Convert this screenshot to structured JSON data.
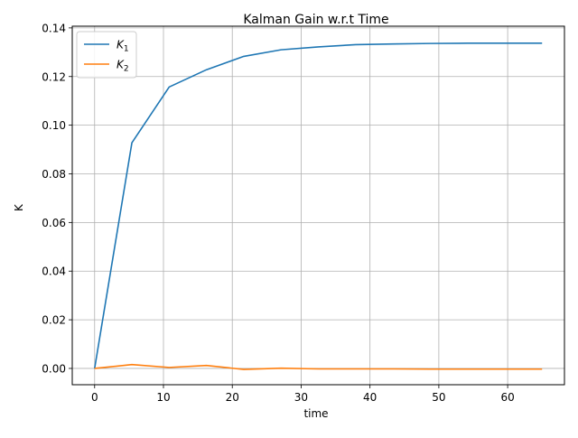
{
  "chart_data": {
    "type": "line",
    "title": "Kalman Gain w.r.t Time",
    "xlabel": "time",
    "ylabel": "K",
    "xlim": [
      -3.25,
      68.25
    ],
    "ylim": [
      -0.0067,
      0.1407
    ],
    "xticks": [
      0,
      10,
      20,
      30,
      40,
      50,
      60
    ],
    "yticks": [
      0.0,
      0.02,
      0.04,
      0.06,
      0.08,
      0.1,
      0.12,
      0.14
    ],
    "grid": true,
    "legend_position": "top-left",
    "x": [
      0,
      5.417,
      10.833,
      16.25,
      21.667,
      27.083,
      32.5,
      37.917,
      43.333,
      48.75,
      54.167,
      59.583,
      65
    ],
    "series": [
      {
        "name": "K1",
        "name_base": "K",
        "name_sub": "1",
        "color": "#1f77b4",
        "values": [
          0.0,
          0.0928,
          0.1157,
          0.1228,
          0.1283,
          0.131,
          0.1322,
          0.1331,
          0.1334,
          0.1336,
          0.1337,
          0.1337,
          0.1337
        ]
      },
      {
        "name": "K2",
        "name_base": "K",
        "name_sub": "2",
        "color": "#ff7f0e",
        "values": [
          0.0,
          0.0016,
          0.0004,
          0.0012,
          -0.0004,
          0.0001,
          -0.0002,
          -0.0002,
          -0.0002,
          -0.0003,
          -0.0003,
          -0.0003,
          -0.0003
        ]
      }
    ]
  }
}
